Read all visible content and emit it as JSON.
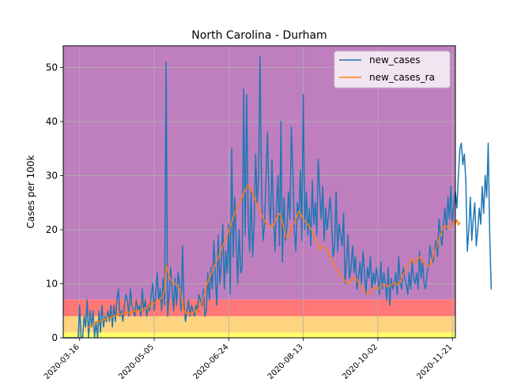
{
  "chart_data": {
    "type": "line",
    "title": "North Carolina - Durham",
    "xlabel": "",
    "ylabel": "Cases per 100k",
    "x_range": [
      "2020-03-05",
      "2020-11-23"
    ],
    "ylim": [
      0,
      54
    ],
    "yticks": [
      0,
      10,
      20,
      30,
      40,
      50
    ],
    "xticks": [
      "2020-03-16",
      "2020-05-05",
      "2020-06-24",
      "2020-08-13",
      "2020-10-02",
      "2020-11-21"
    ],
    "grid": true,
    "legend_position": "top-right",
    "risk_bands": [
      {
        "from": 0,
        "to": 1,
        "color": "#ffff66"
      },
      {
        "from": 1,
        "to": 4,
        "color": "#ffd480"
      },
      {
        "from": 4,
        "to": 7.1,
        "color": "#ff7777"
      },
      {
        "from": 7.1,
        "to": 54,
        "color": "#bf7fbf"
      }
    ],
    "start_date": "2020-03-05",
    "series": [
      {
        "name": "new_cases",
        "color": "#1f77b4",
        "values": [
          0,
          0,
          0,
          0,
          0,
          0,
          0,
          0,
          0,
          0,
          0,
          6,
          0,
          0,
          4,
          2,
          7,
          0,
          5,
          2,
          5,
          0,
          3,
          0,
          5,
          1,
          6,
          2,
          4,
          3,
          5,
          3,
          6,
          2,
          6,
          3,
          7,
          9,
          4,
          5,
          3,
          6,
          8,
          7,
          4,
          9,
          6,
          5,
          4,
          7,
          5,
          6,
          4,
          9,
          5,
          7,
          4,
          6,
          5,
          8,
          10,
          5,
          8,
          12,
          7,
          9,
          5,
          11,
          6,
          51,
          4,
          8,
          13,
          9,
          5,
          11,
          6,
          12,
          10,
          5,
          17,
          6,
          3,
          5,
          7,
          4,
          6,
          5,
          4,
          6,
          5,
          8,
          7,
          6,
          9,
          4,
          5,
          12,
          7,
          13,
          9,
          18,
          11,
          6,
          19,
          10,
          14,
          21,
          9,
          16,
          12,
          21,
          8,
          35,
          15,
          26,
          18,
          10,
          20,
          12,
          13,
          46,
          19,
          45,
          22,
          16,
          27,
          15,
          21,
          34,
          25,
          30,
          52,
          28,
          18,
          21,
          30,
          38,
          25,
          21,
          33,
          23,
          16,
          24,
          30,
          17,
          40,
          14,
          26,
          18,
          20,
          27,
          22,
          39,
          31,
          20,
          16,
          25,
          22,
          31,
          18,
          45,
          20,
          27,
          19,
          24,
          17,
          29,
          21,
          25,
          19,
          33,
          27,
          22,
          28,
          18,
          24,
          20,
          23,
          26,
          21,
          15,
          17,
          27,
          16,
          21,
          19,
          17,
          23,
          10,
          14,
          19,
          11,
          13,
          17,
          12,
          15,
          9,
          11,
          14,
          10,
          16,
          12,
          8,
          13,
          11,
          15,
          9,
          12,
          10,
          13,
          11,
          8,
          14,
          9,
          12,
          10,
          7,
          13,
          6,
          11,
          9,
          10,
          12,
          8,
          15,
          10,
          9,
          13,
          11,
          10,
          8,
          12,
          9,
          14,
          11,
          10,
          12,
          9,
          16,
          11,
          14,
          10,
          9,
          12,
          13,
          17,
          15,
          14,
          16,
          18,
          15,
          22,
          19,
          17,
          21,
          24,
          20,
          26,
          22,
          28,
          21,
          25,
          27,
          24,
          30,
          35,
          36,
          32,
          34,
          29,
          16,
          20,
          26,
          18,
          22,
          25,
          17,
          20,
          24,
          21,
          28,
          23,
          30,
          26,
          36,
          19,
          9
        ]
      },
      {
        "name": "new_cases_ra",
        "color": "#ff7f0e",
        "values": [
          null,
          null,
          null,
          null,
          null,
          null,
          null,
          null,
          null,
          null,
          null,
          null,
          null,
          null,
          null,
          null,
          null,
          2,
          2.1,
          2.3,
          2.4,
          2.6,
          2.8,
          3.0,
          3.0,
          3.1,
          3.2,
          3.3,
          3.4,
          3.5,
          3.6,
          3.7,
          3.8,
          3.9,
          4.0,
          4.1,
          4.2,
          4.3,
          4.4,
          4.4,
          4.5,
          4.5,
          4.6,
          4.6,
          4.7,
          4.7,
          4.8,
          4.8,
          4.9,
          4.9,
          5.0,
          5.0,
          5.1,
          5.2,
          5.3,
          5.4,
          5.5,
          5.6,
          5.8,
          6.0,
          6.2,
          6.4,
          6.6,
          6.8,
          7.0,
          7.2,
          7.4,
          7.8,
          9.0,
          13.5,
          12.5,
          11.5,
          10.8,
          10.5,
          10.2,
          10.0,
          9.8,
          9.5,
          9.0,
          8.0,
          6.0,
          5.0,
          4.5,
          4.6,
          4.8,
          4.5,
          4.4,
          4.6,
          4.8,
          5.0,
          5.2,
          5.6,
          6.0,
          6.8,
          7.6,
          8.6,
          9.5,
          10.4,
          11.0,
          11.8,
          12.4,
          13.0,
          13.6,
          14.2,
          14.8,
          15.5,
          16.2,
          17.0,
          17.6,
          18.4,
          19.0,
          19.8,
          20.6,
          21.4,
          22.2,
          23.0,
          23.6,
          24.2,
          24.8,
          25.4,
          26.0,
          26.6,
          27.2,
          27.8,
          28.2,
          28.0,
          27.4,
          26.8,
          26.0,
          25.2,
          24.6,
          24.0,
          23.4,
          22.8,
          22.2,
          21.6,
          21.2,
          21.0,
          20.8,
          20.6,
          20.5,
          20.8,
          21.4,
          22.0,
          22.6,
          23.0,
          22.4,
          21.4,
          20.2,
          19.0,
          18.4,
          18.6,
          19.4,
          20.4,
          21.0,
          21.4,
          22.0,
          22.8,
          23.4,
          23.0,
          22.4,
          22.0,
          21.6,
          21.2,
          21.0,
          20.6,
          20.2,
          19.6,
          19.0,
          18.2,
          17.4,
          16.8,
          16.4,
          16.6,
          17.0,
          16.8,
          16.4,
          16.0,
          15.6,
          15.0,
          14.4,
          13.8,
          13.2,
          12.8,
          12.4,
          12.0,
          11.6,
          11.2,
          10.8,
          10.4,
          10.2,
          10.0,
          10.2,
          10.6,
          11.0,
          11.2,
          11.0,
          10.6,
          10.2,
          9.8,
          9.4,
          9.0,
          8.6,
          8.2,
          8.0,
          8.2,
          8.6,
          9.0,
          9.2,
          9.4,
          9.2,
          9.0,
          9.2,
          9.6,
          9.8,
          10.0,
          9.8,
          9.6,
          9.4,
          9.6,
          9.8,
          10.0,
          10.2,
          10.0,
          9.8,
          10.0,
          10.4,
          11.0,
          11.6,
          12.2,
          12.8,
          13.4,
          14.0,
          14.6,
          14.4,
          14.0,
          13.8,
          14.2,
          14.6,
          15.0,
          14.6,
          14.2,
          13.8,
          13.6,
          13.4,
          13.2,
          13.6,
          14.2,
          15.0,
          15.8,
          16.6,
          17.4,
          18.2,
          19.0,
          19.8,
          20.4,
          20.8,
          20.6,
          20.2,
          20.4,
          20.8,
          21.2,
          21.6,
          21.2,
          21.8,
          20.8,
          21.4
        ]
      }
    ]
  }
}
